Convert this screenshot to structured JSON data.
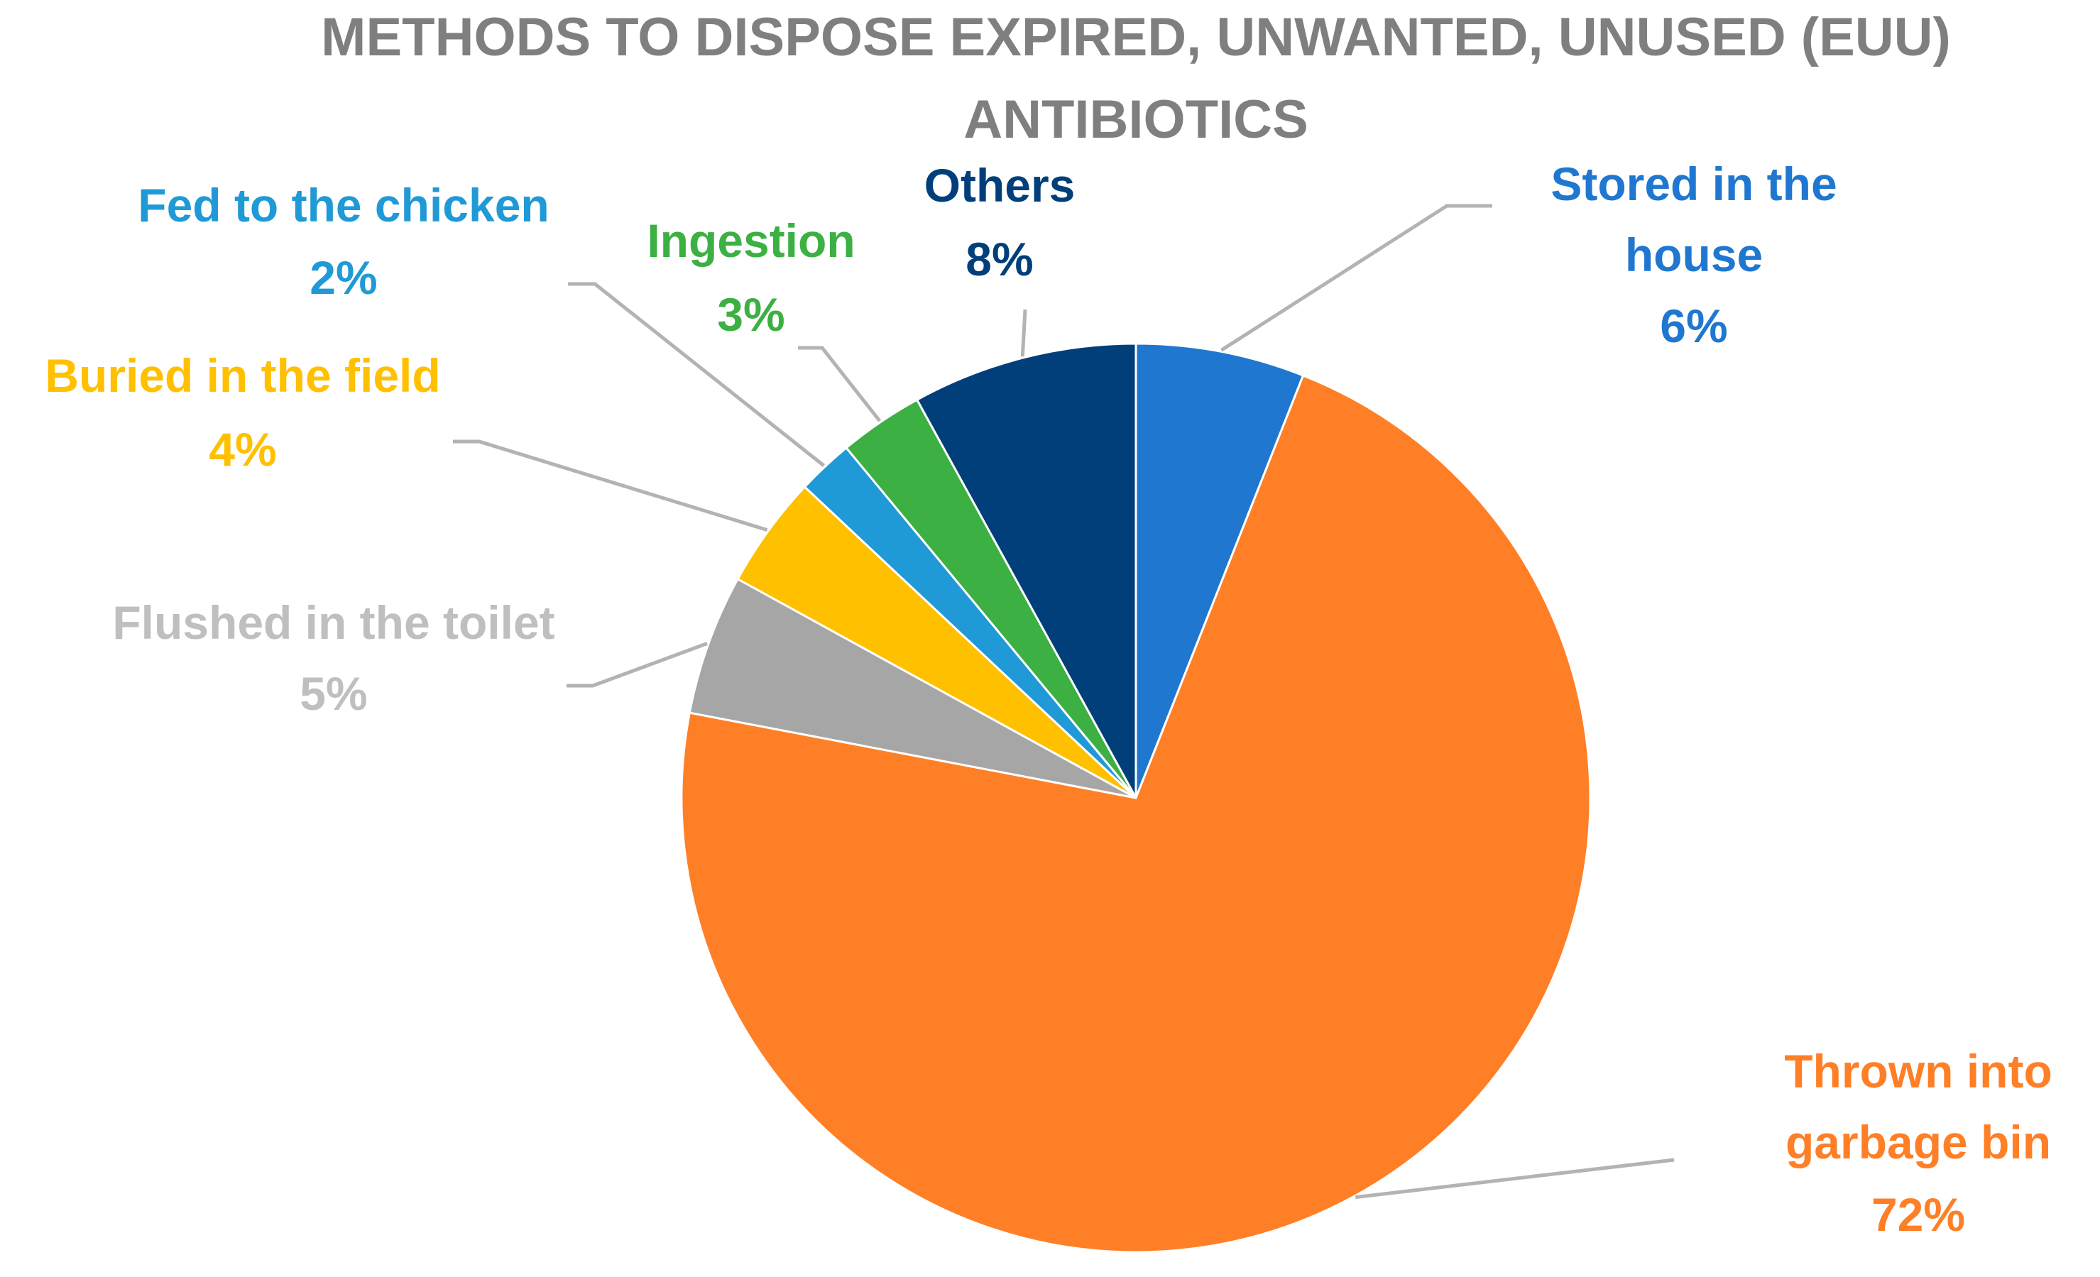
{
  "chart_data": {
    "type": "pie",
    "title_lines": [
      "METHODS TO DISPOSE EXPIRED, UNWANTED, UNUSED (EUU)",
      "ANTIBIOTICS"
    ],
    "title_color": "#7f7f7f",
    "leader_line_color": "#b3b3b3",
    "slices": [
      {
        "label_lines": [
          "Stored in the",
          "house"
        ],
        "value_label": "6%",
        "value": 6,
        "color": "#1f77d0",
        "label_color": "#1f77d0"
      },
      {
        "label_lines": [
          "Thrown into",
          "garbage bin"
        ],
        "value_label": "72%",
        "value": 72,
        "color": "#ff7f27",
        "label_color": "#ff7f27"
      },
      {
        "label_lines": [
          "Flushed in the toilet"
        ],
        "value_label": "5%",
        "value": 5,
        "color": "#a6a6a6",
        "label_color": "#bfbfbf"
      },
      {
        "label_lines": [
          "Buried in the field"
        ],
        "value_label": "4%",
        "value": 4,
        "color": "#ffc000",
        "label_color": "#ffc000"
      },
      {
        "label_lines": [
          "Fed to the chicken"
        ],
        "value_label": "2%",
        "value": 2,
        "color": "#1f9ad6",
        "label_color": "#1f9ad6"
      },
      {
        "label_lines": [
          "Ingestion"
        ],
        "value_label": "3%",
        "value": 3,
        "color": "#3cb043",
        "label_color": "#3cb043"
      },
      {
        "label_lines": [
          "Others"
        ],
        "value_label": "8%",
        "value": 8,
        "color": "#003f7a",
        "label_color": "#003f7a"
      }
    ]
  }
}
